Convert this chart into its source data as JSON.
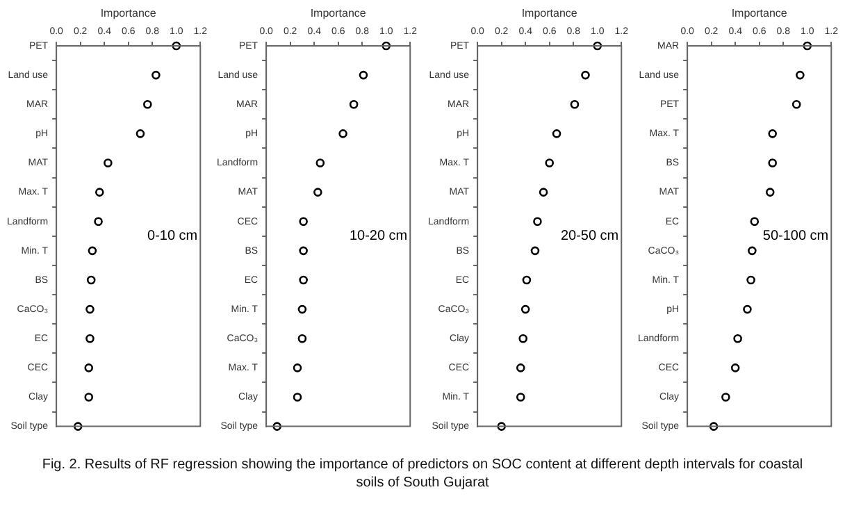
{
  "chart_data": [
    {
      "type": "scatter",
      "orientation": "horizontal",
      "xlabel": "Importance",
      "marker": "circle",
      "grid": false,
      "legend": false,
      "xlim": [
        0,
        1.2
      ],
      "xticks": [
        {
          "value": 0,
          "label": "0.0"
        },
        {
          "value": 0.2,
          "label": "0.2"
        },
        {
          "value": 0.4,
          "label": "0.4"
        },
        {
          "value": 0.6,
          "label": "0.6"
        },
        {
          "value": 0.8,
          "label": "0.8"
        },
        {
          "value": 1,
          "label": "1.0"
        },
        {
          "value": 1.2,
          "label": "1.2"
        }
      ],
      "categories": [
        "PET",
        "Land use",
        "MAR",
        "pH",
        "MAT",
        "Max. T",
        "Landform",
        "Min. T",
        "BS",
        "CaCO₃",
        "EC",
        "CEC",
        "Clay",
        "Soil type"
      ],
      "series": [
        {
          "color": "#000000",
          "values": [
            1.0,
            0.83,
            0.76,
            0.7,
            0.43,
            0.36,
            0.35,
            0.3,
            0.29,
            0.28,
            0.28,
            0.27,
            0.27,
            0.18
          ]
        }
      ],
      "annotations": [
        "0-10 cm",
        "Fig. 2. Results of RF regression showing the importance of predictors on SOC content at different depth intervals for coastal soils of South Gujarat"
      ]
    },
    {
      "type": "scatter",
      "orientation": "horizontal",
      "xlabel": "Importance",
      "marker": "circle",
      "grid": false,
      "legend": false,
      "xlim": [
        0,
        1.2
      ],
      "xticks": [
        {
          "value": 0,
          "label": "0.0"
        },
        {
          "value": 0.2,
          "label": "0.2"
        },
        {
          "value": 0.4,
          "label": "0.4"
        },
        {
          "value": 0.6,
          "label": "0.6"
        },
        {
          "value": 0.8,
          "label": "0.8"
        },
        {
          "value": 1,
          "label": "1.0"
        },
        {
          "value": 1.2,
          "label": "1.2"
        }
      ],
      "categories": [
        "PET",
        "Land use",
        "MAR",
        "pH",
        "Landform",
        "MAT",
        "CEC",
        "BS",
        "EC",
        "Min. T",
        "CaCO₃",
        "Max. T",
        "Clay",
        "Soil type"
      ],
      "series": [
        {
          "color": "#000000",
          "values": [
            1.0,
            0.81,
            0.73,
            0.64,
            0.45,
            0.43,
            0.31,
            0.31,
            0.31,
            0.3,
            0.3,
            0.26,
            0.26,
            0.09
          ]
        }
      ],
      "annotations": [
        "10-20 cm"
      ]
    },
    {
      "type": "scatter",
      "orientation": "horizontal",
      "xlabel": "Importance",
      "marker": "circle",
      "grid": false,
      "legend": false,
      "xlim": [
        0,
        1.2
      ],
      "xticks": [
        {
          "value": 0,
          "label": "0.0"
        },
        {
          "value": 0.2,
          "label": "0.2"
        },
        {
          "value": 0.4,
          "label": "0.4"
        },
        {
          "value": 0.6,
          "label": "0.6"
        },
        {
          "value": 0.8,
          "label": "0.8"
        },
        {
          "value": 1,
          "label": "1.0"
        },
        {
          "value": 1.2,
          "label": "1.2"
        }
      ],
      "categories": [
        "PET",
        "Land use",
        "MAR",
        "pH",
        "Max. T",
        "MAT",
        "Landform",
        "BS",
        "EC",
        "CaCO₃",
        "Clay",
        "CEC",
        "Min. T",
        "Soil type"
      ],
      "series": [
        {
          "color": "#000000",
          "values": [
            1.0,
            0.9,
            0.81,
            0.66,
            0.6,
            0.55,
            0.5,
            0.48,
            0.41,
            0.4,
            0.38,
            0.36,
            0.36,
            0.2
          ]
        }
      ],
      "annotations": [
        "20-50 cm"
      ]
    },
    {
      "type": "scatter",
      "orientation": "horizontal",
      "xlabel": "Importance",
      "marker": "circle",
      "grid": false,
      "legend": false,
      "xlim": [
        0,
        1.2
      ],
      "xticks": [
        {
          "value": 0,
          "label": "0.0"
        },
        {
          "value": 0.2,
          "label": "0.2"
        },
        {
          "value": 0.4,
          "label": "0.4"
        },
        {
          "value": 0.6,
          "label": "0.6"
        },
        {
          "value": 0.8,
          "label": "0.8"
        },
        {
          "value": 1,
          "label": "1.0"
        },
        {
          "value": 1.2,
          "label": "1.2"
        }
      ],
      "categories": [
        "MAR",
        "Land use",
        "PET",
        "Max. T",
        "BS",
        "MAT",
        "EC",
        "CaCO₃",
        "Min. T",
        "pH",
        "Landform",
        "CEC",
        "Clay",
        "Soil type"
      ],
      "series": [
        {
          "color": "#000000",
          "values": [
            1.0,
            0.94,
            0.91,
            0.71,
            0.71,
            0.69,
            0.56,
            0.54,
            0.53,
            0.5,
            0.42,
            0.4,
            0.32,
            0.22
          ]
        }
      ],
      "annotations": [
        "50-100 cm"
      ]
    }
  ]
}
